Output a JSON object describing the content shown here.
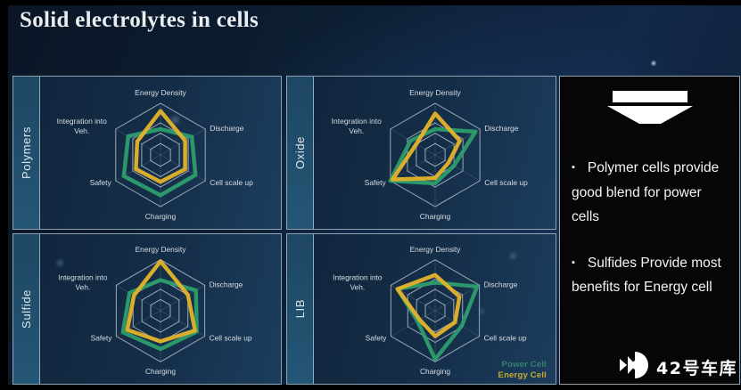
{
  "slide": {
    "title": "Solid electrolytes in cells"
  },
  "legend": {
    "items": [
      {
        "label": "Power Cell",
        "color": "#35826d"
      },
      {
        "label": "Energy Cell",
        "color": "#c5aa30"
      }
    ],
    "position": "bottom-right-of-LIB-panel"
  },
  "info_panel": {
    "icon": "funnel-icon",
    "bullets": [
      "Polymer cells provide good blend for power cells",
      "Sulfides Provide most benefits for Energy cell"
    ]
  },
  "watermark": {
    "icon": "42garage-logo-icon",
    "text": "42号车库"
  },
  "colors": {
    "power_cell_line": "#2c9d6d",
    "energy_cell_line": "#e5b32a",
    "grid_line": "#c9d3dc",
    "panel_border": "#becdda",
    "axis_label": "#d6dde4"
  },
  "chart_data": [
    {
      "type": "radar",
      "panel_label": "Polymers",
      "axes": [
        "Energy Density",
        "Discharge",
        "Cell scale up",
        "Charging",
        "Safety",
        "Integration into Veh."
      ],
      "rings": [
        0.22,
        0.42,
        0.62,
        1.0
      ],
      "scale": [
        0,
        1
      ],
      "series": [
        {
          "name": "Power Cell",
          "color": "#2c9d6d",
          "values": [
            0.5,
            0.7,
            0.78,
            0.78,
            0.82,
            0.72
          ]
        },
        {
          "name": "Energy Cell",
          "color": "#e5b32a",
          "values": [
            0.85,
            0.55,
            0.55,
            0.52,
            0.55,
            0.52
          ]
        }
      ]
    },
    {
      "type": "radar",
      "panel_label": "Oxide",
      "axes": [
        "Energy Density",
        "Discharge",
        "Cell scale up",
        "Charging",
        "Safety",
        "Integration into Veh."
      ],
      "rings": [
        0.22,
        0.42,
        0.62,
        1.0
      ],
      "scale": [
        0,
        1
      ],
      "series": [
        {
          "name": "Power Cell",
          "color": "#2c9d6d",
          "values": [
            0.5,
            0.9,
            0.42,
            0.55,
            1.0,
            0.55
          ]
        },
        {
          "name": "Energy Cell",
          "color": "#e5b32a",
          "values": [
            0.8,
            0.55,
            0.3,
            0.45,
            0.95,
            0.42
          ]
        }
      ]
    },
    {
      "type": "radar",
      "panel_label": "Sulfide",
      "axes": [
        "Energy Density",
        "Discharge",
        "Cell scale up",
        "Charging",
        "Safety",
        "Integration into Veh."
      ],
      "rings": [
        0.22,
        0.42,
        0.62,
        1.0
      ],
      "scale": [
        0,
        1
      ],
      "series": [
        {
          "name": "Power Cell",
          "color": "#2c9d6d",
          "values": [
            0.6,
            0.8,
            0.82,
            0.75,
            0.85,
            0.7
          ]
        },
        {
          "name": "Energy Cell",
          "color": "#e5b32a",
          "values": [
            0.97,
            0.62,
            0.78,
            0.6,
            0.75,
            0.6
          ]
        }
      ]
    },
    {
      "type": "radar",
      "panel_label": "LIB",
      "axes": [
        "Energy Density",
        "Discharge",
        "Cell scale up",
        "Charging",
        "Safety",
        "Integration into Veh."
      ],
      "rings": [
        0.22,
        0.42,
        0.62,
        1.0
      ],
      "scale": [
        0,
        1
      ],
      "series": [
        {
          "name": "Power Cell",
          "color": "#2c9d6d",
          "values": [
            0.55,
            0.95,
            0.6,
            0.95,
            0.4,
            0.85
          ]
        },
        {
          "name": "Energy Cell",
          "color": "#e5b32a",
          "values": [
            0.7,
            0.55,
            0.45,
            0.5,
            0.35,
            0.85
          ]
        }
      ]
    }
  ]
}
